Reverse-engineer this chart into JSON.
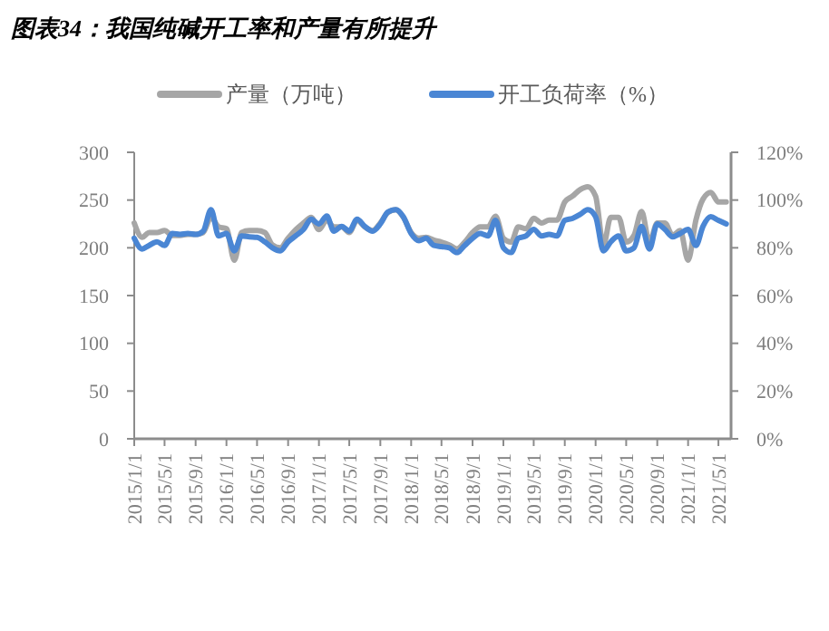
{
  "chart_data": {
    "type": "line",
    "title": "图表34：我国纯碱开工率和产量有所提升",
    "x": [
      "2015-01-01",
      "2015-02-01",
      "2015-03-01",
      "2015-04-01",
      "2015-05-01",
      "2015-06-01",
      "2015-07-01",
      "2015-08-01",
      "2015-09-01",
      "2015-10-01",
      "2015-11-01",
      "2015-12-01",
      "2016-01-01",
      "2016-02-01",
      "2016-03-01",
      "2016-04-01",
      "2016-05-01",
      "2016-06-01",
      "2016-07-01",
      "2016-08-01",
      "2016-09-01",
      "2016-10-01",
      "2016-11-01",
      "2016-12-01",
      "2017-01-01",
      "2017-02-01",
      "2017-03-01",
      "2017-04-01",
      "2017-05-01",
      "2017-06-01",
      "2017-07-01",
      "2017-08-01",
      "2017-09-01",
      "2017-10-01",
      "2017-11-01",
      "2017-12-01",
      "2018-01-01",
      "2018-02-01",
      "2018-03-01",
      "2018-04-01",
      "2018-05-01",
      "2018-06-01",
      "2018-07-01",
      "2018-08-01",
      "2018-09-01",
      "2018-10-01",
      "2018-11-01",
      "2018-12-01",
      "2019-01-01",
      "2019-02-01",
      "2019-03-01",
      "2019-04-01",
      "2019-05-01",
      "2019-06-01",
      "2019-07-01",
      "2019-08-01",
      "2019-09-01",
      "2019-10-01",
      "2019-11-01",
      "2019-12-01",
      "2020-01-01",
      "2020-02-01",
      "2020-03-01",
      "2020-04-01",
      "2020-05-01",
      "2020-06-01",
      "2020-07-01",
      "2020-08-01",
      "2020-09-01",
      "2020-10-01",
      "2020-11-01",
      "2020-12-01",
      "2021-01-01",
      "2021-02-01",
      "2021-03-01",
      "2021-04-01",
      "2021-05-01",
      "2021-06-01"
    ],
    "series": [
      {
        "name": "产量（万吨）",
        "color": "#a6a6a6",
        "values": [
          226,
          211,
          216,
          216,
          218,
          213,
          213,
          214,
          214,
          216,
          232,
          222,
          220,
          187,
          216,
          218,
          218,
          216,
          203,
          200,
          210,
          219,
          226,
          232,
          219,
          229,
          222,
          222,
          216,
          229,
          222,
          218,
          226,
          237,
          240,
          232,
          216,
          210,
          211,
          208,
          206,
          203,
          199,
          206,
          216,
          222,
          222,
          233,
          210,
          206,
          222,
          220,
          231,
          226,
          229,
          229,
          248,
          254,
          261,
          264,
          254,
          203,
          232,
          232,
          206,
          213,
          238,
          206,
          226,
          226,
          213,
          218,
          187,
          229,
          251,
          258,
          248,
          248
        ]
      },
      {
        "name": "开工负荷率（%）",
        "color": "#4a86d4",
        "axis": "y2",
        "values": [
          84,
          79.5,
          81,
          82.5,
          81,
          86,
          85.6,
          86,
          85.6,
          87,
          96,
          85,
          86,
          78.7,
          85,
          84.6,
          84.4,
          82.5,
          80,
          78.7,
          82.5,
          85,
          87.7,
          92,
          90,
          93.3,
          87,
          89,
          87,
          92,
          89,
          87,
          90,
          95,
          96,
          93,
          86,
          83,
          84,
          81,
          80.5,
          80,
          78,
          81,
          84,
          86,
          85,
          91.5,
          80,
          78,
          84,
          85,
          87.7,
          85,
          85.6,
          85,
          91.5,
          92.3,
          94,
          96,
          93,
          78.7,
          82.5,
          85,
          78.7,
          80,
          89,
          79.5,
          90,
          87.7,
          84.6,
          86,
          87.7,
          81,
          89,
          93,
          91.5,
          90
        ]
      }
    ],
    "xlim": [
      "2015-01-01",
      "2021-06-20"
    ],
    "xticks": [
      {
        "value": "2015-01-01",
        "label": "2015/1/1"
      },
      {
        "value": "2015-05-01",
        "label": "2015/5/1"
      },
      {
        "value": "2015-09-01",
        "label": "2015/9/1"
      },
      {
        "value": "2016-01-01",
        "label": "2016/1/1"
      },
      {
        "value": "2016-05-01",
        "label": "2016/5/1"
      },
      {
        "value": "2016-09-01",
        "label": "2016/9/1"
      },
      {
        "value": "2017-01-01",
        "label": "2017/1/1"
      },
      {
        "value": "2017-05-01",
        "label": "2017/5/1"
      },
      {
        "value": "2017-09-01",
        "label": "2017/9/1"
      },
      {
        "value": "2018-01-01",
        "label": "2018/1/1"
      },
      {
        "value": "2018-05-01",
        "label": "2018/5/1"
      },
      {
        "value": "2018-09-01",
        "label": "2018/9/1"
      },
      {
        "value": "2019-01-01",
        "label": "2019/1/1"
      },
      {
        "value": "2019-05-01",
        "label": "2019/5/1"
      },
      {
        "value": "2019-09-01",
        "label": "2019/9/1"
      },
      {
        "value": "2020-01-01",
        "label": "2020/1/1"
      },
      {
        "value": "2020-05-01",
        "label": "2020/5/1"
      },
      {
        "value": "2020-09-01",
        "label": "2020/9/1"
      },
      {
        "value": "2021-01-01",
        "label": "2021/1/1"
      },
      {
        "value": "2021-05-01",
        "label": "2021/5/1"
      }
    ],
    "ylim": [
      0,
      300
    ],
    "yticks": [
      0,
      50,
      100,
      150,
      200,
      250,
      300
    ],
    "y2lim": [
      0,
      120
    ],
    "y2ticks": [
      {
        "value": 0,
        "label": "0%"
      },
      {
        "value": 20,
        "label": "20%"
      },
      {
        "value": 40,
        "label": "40%"
      },
      {
        "value": 60,
        "label": "60%"
      },
      {
        "value": 80,
        "label": "80%"
      },
      {
        "value": 100,
        "label": "100%"
      },
      {
        "value": 120,
        "label": "120%"
      }
    ],
    "grid": false,
    "legend": "top",
    "marker": "none",
    "line_style": "solid"
  }
}
